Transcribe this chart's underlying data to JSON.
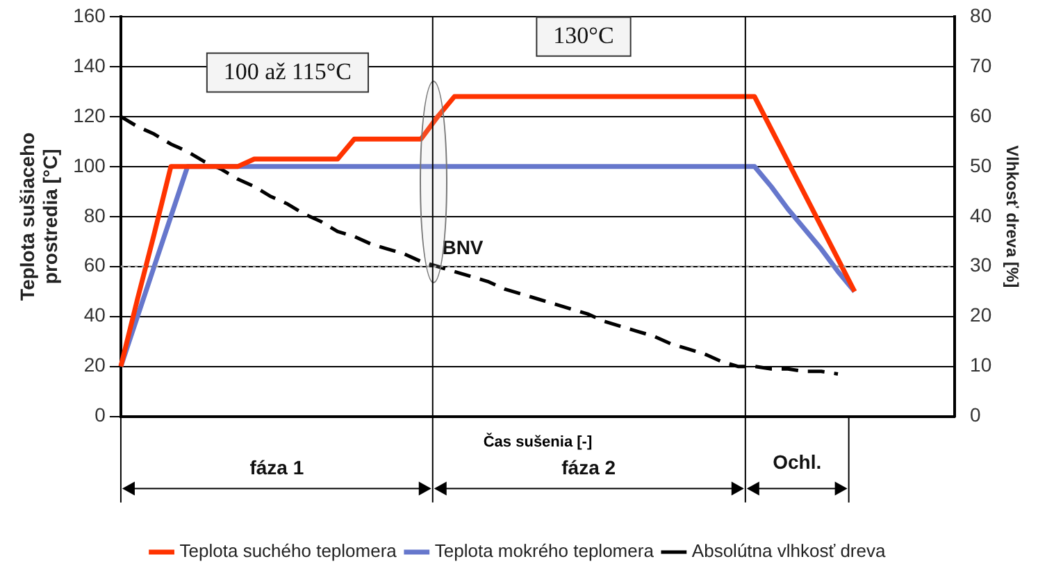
{
  "chart_data": {
    "type": "line",
    "xlabel": "Čas sušenia [-]",
    "ylabel": "Teplota sušiaceho\nprostredia [°C]",
    "y2label": "Vlhkosť dreva [%]",
    "categories": [
      null,
      null,
      null,
      null,
      null,
      null,
      null,
      null,
      null,
      null,
      null,
      null,
      null,
      null,
      null,
      null,
      null,
      null,
      null,
      null,
      null,
      null,
      null,
      null,
      null,
      null,
      null,
      null,
      null,
      null,
      null,
      null,
      null,
      null,
      null,
      null,
      null,
      null,
      null,
      null,
      null,
      null,
      null,
      null,
      null,
      null,
      null,
      null,
      null,
      null,
      null
    ],
    "ylim": [
      0,
      160
    ],
    "yticks": [
      0,
      20,
      40,
      60,
      80,
      100,
      120,
      140,
      160
    ],
    "y2lim": [
      0,
      80
    ],
    "y2ticks": [
      0,
      10,
      20,
      30,
      40,
      50,
      60,
      70,
      80
    ],
    "grid": "y",
    "legend": "bottom",
    "marker": "none",
    "series": [
      {
        "name": "Teplota suchého teplomera",
        "color": "#ff3300",
        "values": [
          20,
          47,
          73,
          100,
          100,
          100,
          100,
          100,
          103,
          103,
          103,
          103,
          103,
          103,
          111,
          111,
          111,
          111,
          111,
          120,
          128,
          128,
          128,
          128,
          128,
          128,
          128,
          128,
          128,
          128,
          128,
          128,
          128,
          128,
          128,
          128,
          128,
          128,
          128,
          115,
          102,
          89,
          76,
          63,
          50,
          null,
          null,
          null,
          null,
          null,
          null
        ]
      },
      {
        "name": "Teplota mokrého teplomera",
        "color": "#6677cc",
        "values": [
          20,
          40,
          60,
          80,
          100,
          100,
          100,
          100,
          100,
          100,
          100,
          100,
          100,
          100,
          100,
          100,
          100,
          100,
          100,
          100,
          100,
          100,
          100,
          100,
          100,
          100,
          100,
          100,
          100,
          100,
          100,
          100,
          100,
          100,
          100,
          100,
          100,
          100,
          100,
          92,
          83,
          75,
          67,
          58,
          50,
          null,
          null,
          null,
          null,
          null,
          null
        ]
      },
      {
        "name": "Absolútna vlhkosť dreva",
        "color": "#000000",
        "line_style": "dashed",
        "axis": "y2",
        "values": [
          60,
          58,
          56.5,
          54.5,
          53,
          51,
          49.5,
          47.5,
          46,
          44,
          42.5,
          40.5,
          39,
          37,
          36,
          34.5,
          33.5,
          32.5,
          31,
          30,
          29,
          28,
          27,
          25.5,
          24.5,
          23.5,
          22.5,
          21.5,
          20.5,
          19,
          18,
          17,
          16,
          14.5,
          13.5,
          12.5,
          11,
          10,
          10,
          9.5,
          9.5,
          9,
          9,
          8.5,
          null,
          null,
          null,
          null,
          null,
          null,
          null
        ]
      }
    ],
    "ref_lines": [
      {
        "axis": "y",
        "value": 60,
        "color": "#999999",
        "line_style": "dotted"
      }
    ],
    "annotations": [
      "100 až 115°C",
      "130°C",
      "BNV",
      "fáza 1",
      "fáza 2",
      "Ochl."
    ]
  }
}
